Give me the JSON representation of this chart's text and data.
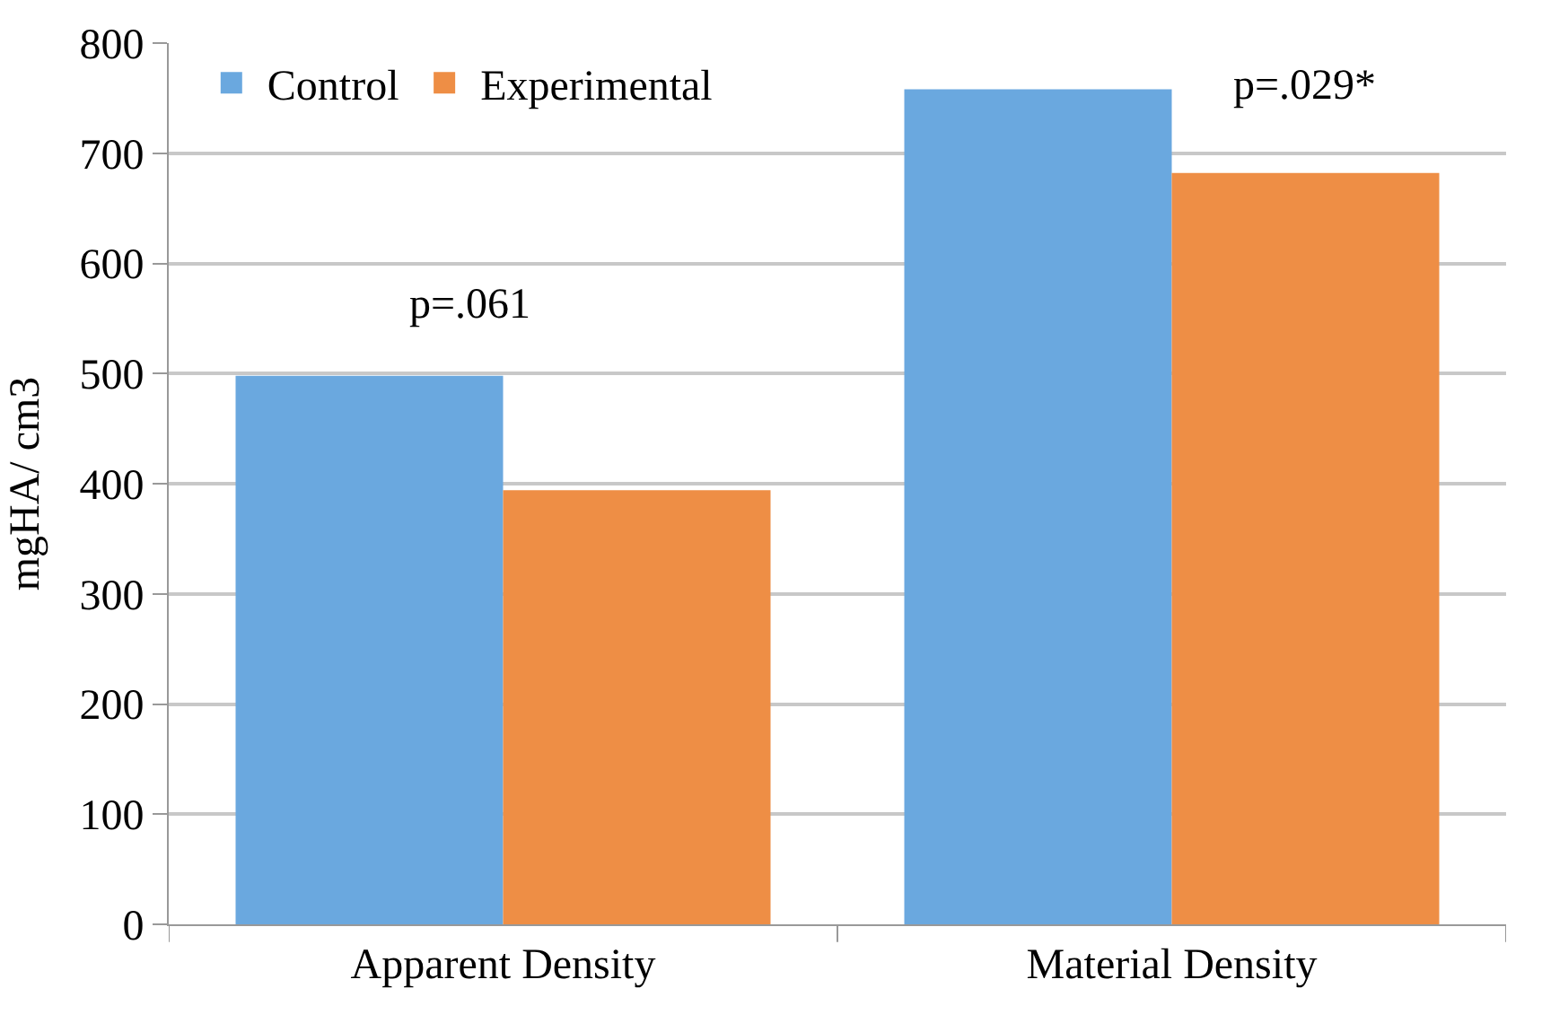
{
  "chart_data": {
    "type": "bar",
    "ylabel": "mgHA/ cm3",
    "categories": [
      "Apparent Density",
      "Material Density"
    ],
    "series": [
      {
        "name": "Control",
        "color": "#6aa8df",
        "values": [
          498,
          758
        ]
      },
      {
        "name": "Experimental",
        "color": "#ee8e45",
        "values": [
          394,
          682
        ]
      }
    ],
    "ylim": [
      0,
      800
    ],
    "yticks": [
      0,
      100,
      200,
      300,
      400,
      500,
      600,
      700,
      800
    ],
    "grid": "y",
    "legend": "top left",
    "annotations": [
      "p=.061",
      "p=.029*"
    ]
  }
}
